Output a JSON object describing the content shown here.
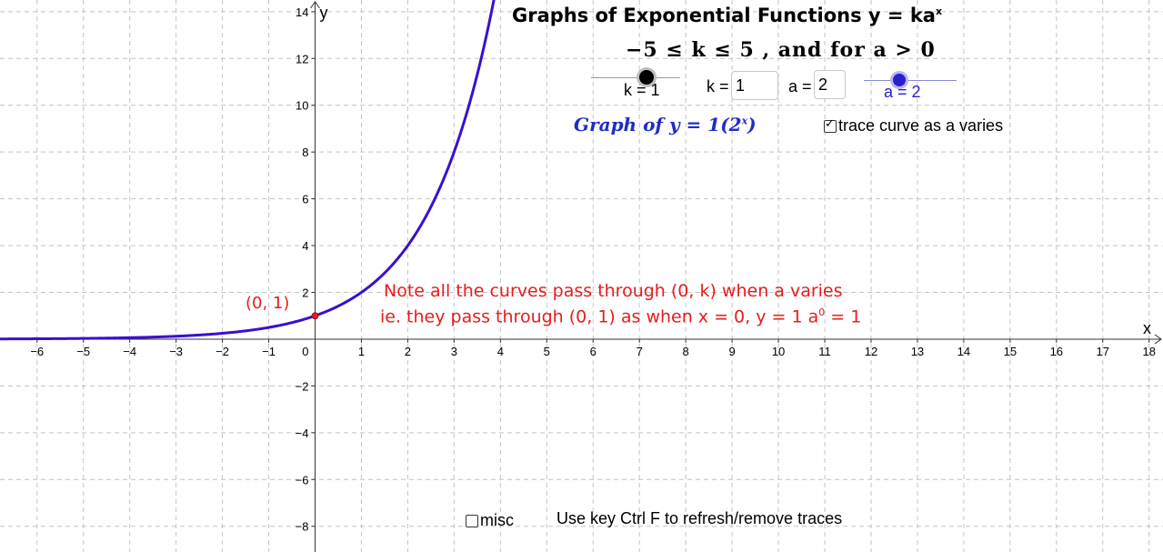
{
  "title": {
    "text": "Graphs of Exponential Functions  y  =  ka",
    "sup": "x"
  },
  "condition": "−5  ≤  k  ≤  5 , and  for  a  >  0",
  "slider_k": {
    "label": "k = 1",
    "value": 1,
    "min": -5,
    "max": 5
  },
  "slider_a": {
    "label": "a = 2",
    "value": 2,
    "min": 0,
    "max": 5
  },
  "input_k": {
    "label": "k =",
    "value": "1"
  },
  "input_a": {
    "label": "a =",
    "value": "2"
  },
  "graph_equation": {
    "prefix": "Graph of y  =  1(2",
    "sup": "x",
    "suffix": ")"
  },
  "trace_checkbox": {
    "label": "trace curve as a varies",
    "checked": true
  },
  "misc_checkbox": {
    "label": "misc",
    "checked": false
  },
  "refresh_hint": "Use key Ctrl F to refresh/remove traces",
  "note": {
    "line1": "Note all the curves pass through (0,  k)  when a varies",
    "line2_pre": "ie. they pass through (0,  1) as when x  =  0,   y  =  1 a",
    "line2_sup": "0",
    "line2_post": "  =  1"
  },
  "point_label": "(0, 1)",
  "colors": {
    "curve": "#3a0fd0",
    "point": "#e81c1c",
    "note": "#e81c1c",
    "accent": "#1f2cc8",
    "grid": "#c4c4c4"
  },
  "chart_data": {
    "type": "line",
    "title": "Graphs of Exponential Functions y = ka^x",
    "xlabel": "x",
    "ylabel": "y",
    "xlim": [
      -6.8,
      18.3
    ],
    "ylim": [
      -9.1,
      14.5
    ],
    "grid": true,
    "x_ticks": [
      -6,
      -5,
      -4,
      -3,
      -2,
      -1,
      1,
      2,
      3,
      4,
      5,
      6,
      7,
      8,
      9,
      10,
      11,
      12,
      13,
      14,
      15,
      16,
      17,
      18
    ],
    "y_ticks": [
      -8,
      -6,
      -4,
      -2,
      2,
      4,
      6,
      8,
      10,
      12,
      14
    ],
    "origin_label": "0",
    "series": [
      {
        "name": "y = 1(2^x)",
        "k": 1,
        "a": 2,
        "x_range": [
          -6.8,
          3.86
        ]
      }
    ],
    "points": [
      {
        "x": 0,
        "y": 1,
        "label": "(0, 1)"
      }
    ]
  }
}
